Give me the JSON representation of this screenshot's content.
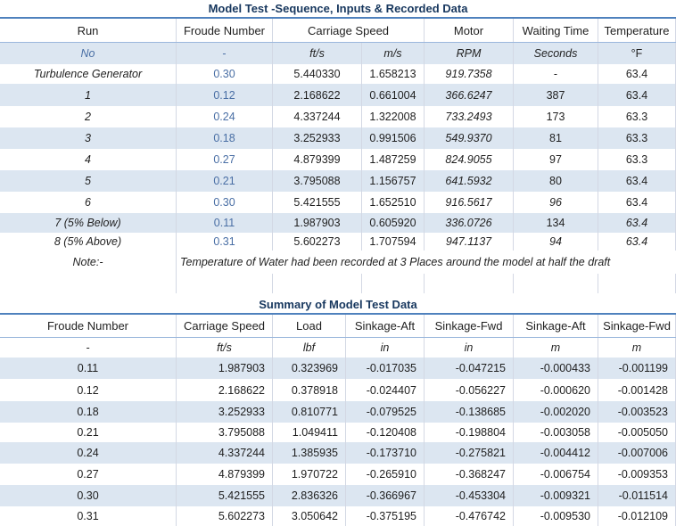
{
  "table1": {
    "title": "Model Test -Sequence,  Inputs & Recorded Data",
    "headers": [
      "Run",
      "Froude Number",
      "Carriage Speed",
      "",
      "Motor",
      "Waiting Time",
      "Temperature"
    ],
    "units": [
      "No",
      "-",
      "ft/s",
      "m/s",
      "RPM",
      "Seconds",
      "°F"
    ],
    "rows": [
      [
        "Turbulence Generator",
        "0.30",
        "5.440330",
        "1.658213",
        "919.7358",
        "-",
        "63.4"
      ],
      [
        "1",
        "0.12",
        "2.168622",
        "0.661004",
        "366.6247",
        "387",
        "63.4"
      ],
      [
        "2",
        "0.24",
        "4.337244",
        "1.322008",
        "733.2493",
        "173",
        "63.3"
      ],
      [
        "3",
        "0.18",
        "3.252933",
        "0.991506",
        "549.9370",
        "81",
        "63.3"
      ],
      [
        "4",
        "0.27",
        "4.879399",
        "1.487259",
        "824.9055",
        "97",
        "63.3"
      ],
      [
        "5",
        "0.21",
        "3.795088",
        "1.156757",
        "641.5932",
        "80",
        "63.4"
      ],
      [
        "6",
        "0.30",
        "5.421555",
        "1.652510",
        "916.5617",
        "96",
        "63.4"
      ],
      [
        "7 (5% Below)",
        "0.11",
        "1.987903",
        "0.605920",
        "336.0726",
        "134",
        "63.4"
      ],
      [
        "8 (5% Above)",
        "0.31",
        "5.602273",
        "1.707594",
        "947.1137",
        "94",
        "63.4"
      ]
    ],
    "note_label": "Note:-",
    "note_text": "Temperature of Water had been recorded at 3 Places around the model at half the draft"
  },
  "table2": {
    "title": "Summary of Model Test Data",
    "headers": [
      "Froude Number",
      "Carriage Speed",
      "Load",
      "Sinkage-Aft",
      "Sinkage-Fwd",
      "Sinkage-Aft",
      "Sinkage-Fwd"
    ],
    "units": [
      "-",
      "ft/s",
      "lbf",
      "in",
      "in",
      "m",
      "m"
    ],
    "rows": [
      [
        "0.11",
        "1.987903",
        "0.323969",
        "-0.017035",
        "-0.047215",
        "-0.000433",
        "-0.001199"
      ],
      [
        "0.12",
        "2.168622",
        "0.378918",
        "-0.024407",
        "-0.056227",
        "-0.000620",
        "-0.001428"
      ],
      [
        "0.18",
        "3.252933",
        "0.810771",
        "-0.079525",
        "-0.138685",
        "-0.002020",
        "-0.003523"
      ],
      [
        "0.21",
        "3.795088",
        "1.049411",
        "-0.120408",
        "-0.198804",
        "-0.003058",
        "-0.005050"
      ],
      [
        "0.24",
        "4.337244",
        "1.385935",
        "-0.173710",
        "-0.275821",
        "-0.004412",
        "-0.007006"
      ],
      [
        "0.27",
        "4.879399",
        "1.970722",
        "-0.265910",
        "-0.368247",
        "-0.006754",
        "-0.009353"
      ],
      [
        "0.30",
        "5.421555",
        "2.836326",
        "-0.366967",
        "-0.453304",
        "-0.009321",
        "-0.011514"
      ],
      [
        "0.31",
        "5.602273",
        "3.050642",
        "-0.375195",
        "-0.476742",
        "-0.009530",
        "-0.012109"
      ]
    ]
  }
}
